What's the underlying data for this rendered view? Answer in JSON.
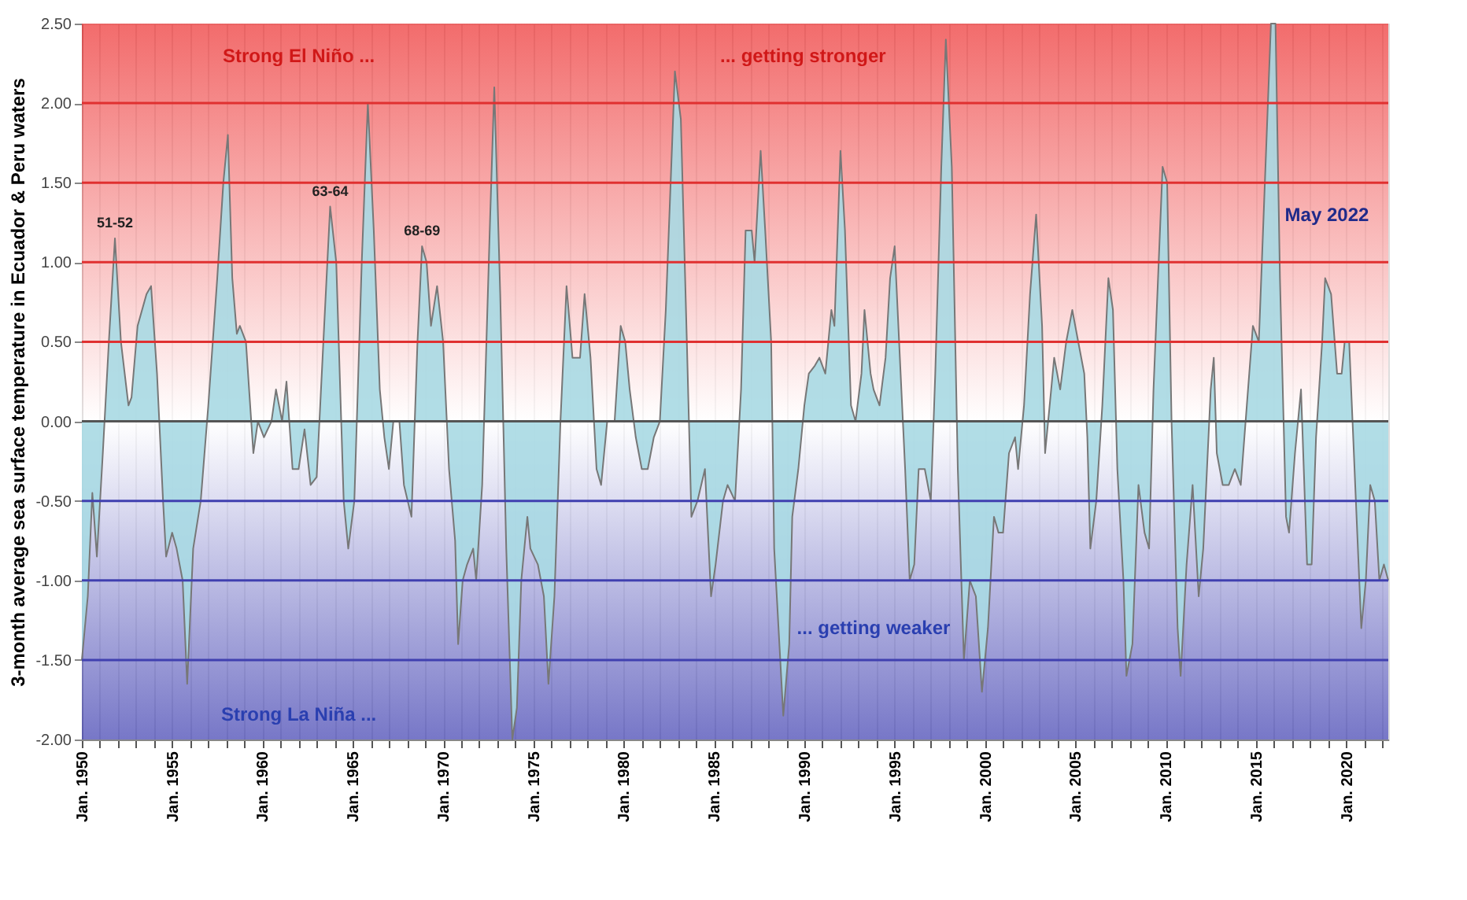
{
  "chart_data": {
    "type": "area",
    "ylabel": "3-month average sea surface temperature in Ecuador & Peru waters",
    "x": [
      "1950-01",
      "1950-05",
      "1950-08",
      "1950-11",
      "1951-03",
      "1951-07",
      "1951-11",
      "1952-03",
      "1952-08",
      "1952-10",
      "1953-02",
      "1953-08",
      "1953-11",
      "1954-03",
      "1954-07",
      "1954-09",
      "1955-01",
      "1955-04",
      "1955-08",
      "1955-11",
      "1956-03",
      "1956-08",
      "1957-01",
      "1957-07",
      "1957-11",
      "1958-02",
      "1958-05",
      "1958-08",
      "1958-10",
      "1959-02",
      "1959-07",
      "1959-10",
      "1960-02",
      "1960-07",
      "1960-10",
      "1961-02",
      "1961-05",
      "1961-09",
      "1962-01",
      "1962-05",
      "1962-09",
      "1963-01",
      "1963-05",
      "1963-10",
      "1964-02",
      "1964-07",
      "1964-10",
      "1965-02",
      "1965-07",
      "1965-11",
      "1966-03",
      "1966-07",
      "1966-10",
      "1967-01",
      "1967-04",
      "1967-08",
      "1967-11",
      "1968-04",
      "1968-08",
      "1968-11",
      "1969-02",
      "1969-05",
      "1969-09",
      "1970-01",
      "1970-05",
      "1970-09",
      "1970-11",
      "1971-02",
      "1971-05",
      "1971-09",
      "1971-11",
      "1972-03",
      "1972-08",
      "1972-11",
      "1973-03",
      "1973-07",
      "1973-11",
      "1974-02",
      "1974-05",
      "1974-09",
      "1974-11",
      "1975-04",
      "1975-08",
      "1975-11",
      "1976-03",
      "1976-07",
      "1976-11",
      "1977-03",
      "1977-08",
      "1977-11",
      "1978-03",
      "1978-07",
      "1978-10",
      "1979-02",
      "1979-07",
      "1979-11",
      "1980-02",
      "1980-05",
      "1980-09",
      "1981-01",
      "1981-05",
      "1981-09",
      "1982-01",
      "1982-05",
      "1982-11",
      "1983-03",
      "1983-07",
      "1983-10",
      "1984-02",
      "1984-07",
      "1984-11",
      "1985-02",
      "1985-07",
      "1985-10",
      "1986-03",
      "1986-07",
      "1986-10",
      "1987-02",
      "1987-04",
      "1987-08",
      "1987-11",
      "1988-03",
      "1988-05",
      "1988-11",
      "1989-03",
      "1989-05",
      "1989-09",
      "1990-01",
      "1990-04",
      "1990-08",
      "1990-11",
      "1991-03",
      "1991-07",
      "1991-09",
      "1992-01",
      "1992-04",
      "1992-08",
      "1992-11",
      "1993-03",
      "1993-05",
      "1993-09",
      "1993-11",
      "1994-03",
      "1994-07",
      "1994-10",
      "1995-01",
      "1995-04",
      "1995-08",
      "1995-11",
      "1996-02",
      "1996-05",
      "1996-09",
      "1997-01",
      "1997-04",
      "1997-08",
      "1997-11",
      "1998-03",
      "1998-07",
      "1998-11",
      "1999-03",
      "1999-07",
      "1999-11",
      "2000-03",
      "2000-07",
      "2000-10",
      "2001-01",
      "2001-05",
      "2001-09",
      "2001-11",
      "2002-03",
      "2002-07",
      "2002-11",
      "2003-03",
      "2003-05",
      "2003-09",
      "2003-11",
      "2004-03",
      "2004-07",
      "2004-11",
      "2005-03",
      "2005-07",
      "2005-09",
      "2005-11",
      "2006-03",
      "2006-07",
      "2006-11",
      "2007-02",
      "2007-05",
      "2007-09",
      "2007-11",
      "2008-03",
      "2008-07",
      "2008-11",
      "2009-02",
      "2009-05",
      "2009-11",
      "2010-02",
      "2010-05",
      "2010-09",
      "2010-11",
      "2011-03",
      "2011-07",
      "2011-11",
      "2012-02",
      "2012-07",
      "2012-09",
      "2012-11",
      "2013-03",
      "2013-07",
      "2013-11",
      "2014-03",
      "2014-07",
      "2014-11",
      "2015-03",
      "2015-07",
      "2015-11",
      "2016-02",
      "2016-05",
      "2016-09",
      "2016-11",
      "2017-03",
      "2017-07",
      "2017-11",
      "2018-02",
      "2018-05",
      "2018-09",
      "2018-11",
      "2019-03",
      "2019-07",
      "2019-10",
      "2019-12",
      "2020-03",
      "2020-07",
      "2020-11",
      "2021-02",
      "2021-05",
      "2021-08",
      "2021-11",
      "2022-02",
      "2022-05"
    ],
    "series": [
      {
        "color": "#a9d9e3",
        "values": [
          -1.5,
          -1.1,
          -0.45,
          -0.85,
          -0.2,
          0.5,
          1.15,
          0.5,
          0.1,
          0.15,
          0.6,
          0.8,
          0.85,
          0.3,
          -0.5,
          -0.85,
          -0.7,
          -0.8,
          -1.0,
          -1.65,
          -0.8,
          -0.5,
          0.1,
          0.9,
          1.5,
          1.8,
          0.9,
          0.55,
          0.6,
          0.5,
          -0.2,
          0.0,
          -0.1,
          0.0,
          0.2,
          0.0,
          0.25,
          -0.3,
          -0.3,
          -0.05,
          -0.4,
          -0.35,
          0.4,
          1.35,
          1.0,
          -0.5,
          -0.8,
          -0.5,
          1.0,
          2.0,
          1.2,
          0.2,
          -0.1,
          -0.3,
          0.0,
          0.0,
          -0.4,
          -0.6,
          0.5,
          1.1,
          1.0,
          0.6,
          0.85,
          0.5,
          -0.3,
          -0.75,
          -1.4,
          -1.0,
          -0.9,
          -0.8,
          -1.0,
          -0.4,
          1.2,
          2.1,
          0.8,
          -0.8,
          -2.0,
          -1.8,
          -1.0,
          -0.6,
          -0.8,
          -0.9,
          -1.1,
          -1.65,
          -1.1,
          0.0,
          0.85,
          0.4,
          0.4,
          0.8,
          0.4,
          -0.3,
          -0.4,
          0.0,
          0.0,
          0.6,
          0.5,
          0.2,
          -0.1,
          -0.3,
          -0.3,
          -0.1,
          0.0,
          0.7,
          2.2,
          1.9,
          0.5,
          -0.6,
          -0.5,
          -0.3,
          -1.1,
          -0.9,
          -0.5,
          -0.4,
          -0.5,
          0.2,
          1.2,
          1.2,
          1.0,
          1.7,
          1.2,
          0.5,
          -0.8,
          -1.85,
          -1.4,
          -0.6,
          -0.3,
          0.1,
          0.3,
          0.35,
          0.4,
          0.3,
          0.7,
          0.6,
          1.7,
          1.2,
          0.1,
          0.0,
          0.3,
          0.7,
          0.3,
          0.2,
          0.1,
          0.4,
          0.9,
          1.1,
          0.5,
          -0.3,
          -1.0,
          -0.9,
          -0.3,
          -0.3,
          -0.5,
          0.3,
          1.6,
          2.4,
          1.6,
          -0.3,
          -1.5,
          -1.0,
          -1.1,
          -1.7,
          -1.3,
          -0.6,
          -0.7,
          -0.7,
          -0.2,
          -0.1,
          -0.3,
          0.1,
          0.8,
          1.3,
          0.6,
          -0.2,
          0.2,
          0.4,
          0.2,
          0.5,
          0.7,
          0.5,
          0.3,
          -0.1,
          -0.8,
          -0.5,
          0.1,
          0.9,
          0.7,
          -0.3,
          -1.0,
          -1.6,
          -1.4,
          -0.4,
          -0.7,
          -0.8,
          0.2,
          1.6,
          1.5,
          0.0,
          -1.3,
          -1.6,
          -0.9,
          -0.4,
          -1.1,
          -0.8,
          0.2,
          0.4,
          -0.2,
          -0.4,
          -0.4,
          -0.3,
          -0.4,
          0.1,
          0.6,
          0.5,
          1.5,
          2.5,
          2.5,
          0.9,
          -0.6,
          -0.7,
          -0.2,
          0.2,
          -0.9,
          -0.9,
          -0.1,
          0.5,
          0.9,
          0.8,
          0.3,
          0.3,
          0.5,
          0.5,
          -0.4,
          -1.3,
          -1.0,
          -0.4,
          -0.5,
          -1.0,
          -0.9,
          -1.0
        ]
      }
    ],
    "xlim": [
      "1950-01",
      "2022-05"
    ],
    "ylim": [
      -2.0,
      2.5
    ],
    "yticks": [
      {
        "value": -2.0,
        "label": "-2.00"
      },
      {
        "value": -1.5,
        "label": "-1.50"
      },
      {
        "value": -1.0,
        "label": "-1.00"
      },
      {
        "value": -0.5,
        "label": "-0.50"
      },
      {
        "value": 0.0,
        "label": "0.00"
      },
      {
        "value": 0.5,
        "label": "0.50"
      },
      {
        "value": 1.0,
        "label": "1.00"
      },
      {
        "value": 1.5,
        "label": "1.50"
      },
      {
        "value": 2.0,
        "label": "2.00"
      },
      {
        "value": 2.5,
        "label": "2.50"
      }
    ],
    "xticks": [
      {
        "value": "1950-01",
        "label": "Jan. 1950"
      },
      {
        "value": "1951-01",
        "label": null
      },
      {
        "value": "1952-01",
        "label": null
      },
      {
        "value": "1953-01",
        "label": null
      },
      {
        "value": "1954-01",
        "label": null
      },
      {
        "value": "1955-01",
        "label": "Jan. 1955"
      },
      {
        "value": "1956-01",
        "label": null
      },
      {
        "value": "1957-01",
        "label": null
      },
      {
        "value": "1958-01",
        "label": null
      },
      {
        "value": "1959-01",
        "label": null
      },
      {
        "value": "1960-01",
        "label": "Jan. 1960"
      },
      {
        "value": "1961-01",
        "label": null
      },
      {
        "value": "1962-01",
        "label": null
      },
      {
        "value": "1963-01",
        "label": null
      },
      {
        "value": "1964-01",
        "label": null
      },
      {
        "value": "1965-01",
        "label": "Jan. 1965"
      },
      {
        "value": "1966-01",
        "label": null
      },
      {
        "value": "1967-01",
        "label": null
      },
      {
        "value": "1968-01",
        "label": null
      },
      {
        "value": "1969-01",
        "label": null
      },
      {
        "value": "1970-01",
        "label": "Jan. 1970"
      },
      {
        "value": "1971-01",
        "label": null
      },
      {
        "value": "1972-01",
        "label": null
      },
      {
        "value": "1973-01",
        "label": null
      },
      {
        "value": "1974-01",
        "label": null
      },
      {
        "value": "1975-01",
        "label": "Jan. 1975"
      },
      {
        "value": "1976-01",
        "label": null
      },
      {
        "value": "1977-01",
        "label": null
      },
      {
        "value": "1978-01",
        "label": null
      },
      {
        "value": "1979-01",
        "label": null
      },
      {
        "value": "1980-01",
        "label": "Jan. 1980"
      },
      {
        "value": "1981-01",
        "label": null
      },
      {
        "value": "1982-01",
        "label": null
      },
      {
        "value": "1983-01",
        "label": null
      },
      {
        "value": "1984-01",
        "label": null
      },
      {
        "value": "1985-01",
        "label": "Jan. 1985"
      },
      {
        "value": "1986-01",
        "label": null
      },
      {
        "value": "1987-01",
        "label": null
      },
      {
        "value": "1988-01",
        "label": null
      },
      {
        "value": "1989-01",
        "label": null
      },
      {
        "value": "1990-01",
        "label": "Jan. 1990"
      },
      {
        "value": "1991-01",
        "label": null
      },
      {
        "value": "1992-01",
        "label": null
      },
      {
        "value": "1993-01",
        "label": null
      },
      {
        "value": "1994-01",
        "label": null
      },
      {
        "value": "1995-01",
        "label": "Jan. 1995"
      },
      {
        "value": "1996-01",
        "label": null
      },
      {
        "value": "1997-01",
        "label": null
      },
      {
        "value": "1998-01",
        "label": null
      },
      {
        "value": "1999-01",
        "label": null
      },
      {
        "value": "2000-01",
        "label": "Jan. 2000"
      },
      {
        "value": "2001-01",
        "label": null
      },
      {
        "value": "2002-01",
        "label": null
      },
      {
        "value": "2003-01",
        "label": null
      },
      {
        "value": "2004-01",
        "label": null
      },
      {
        "value": "2005-01",
        "label": "Jan. 2005"
      },
      {
        "value": "2006-01",
        "label": null
      },
      {
        "value": "2007-01",
        "label": null
      },
      {
        "value": "2008-01",
        "label": null
      },
      {
        "value": "2009-01",
        "label": null
      },
      {
        "value": "2010-01",
        "label": "Jan. 2010"
      },
      {
        "value": "2011-01",
        "label": null
      },
      {
        "value": "2012-01",
        "label": null
      },
      {
        "value": "2013-01",
        "label": null
      },
      {
        "value": "2014-01",
        "label": null
      },
      {
        "value": "2015-01",
        "label": "Jan. 2015"
      },
      {
        "value": "2016-01",
        "label": null
      },
      {
        "value": "2017-01",
        "label": null
      },
      {
        "value": "2018-01",
        "label": null
      },
      {
        "value": "2019-01",
        "label": null
      },
      {
        "value": "2020-01",
        "label": "Jan. 2020"
      },
      {
        "value": "2021-01",
        "label": null
      },
      {
        "value": "2022-01",
        "label": null
      }
    ],
    "grid": "x",
    "bands": [
      {
        "axis": "y",
        "from": 0.0,
        "to": 2.5,
        "color": "#ee3b3b"
      },
      {
        "axis": "y",
        "from": -2.0,
        "to": 0.0,
        "color": "#4a4ab5"
      }
    ],
    "ref_lines": [
      {
        "axis": "y",
        "value": 2.0,
        "color": "#e03030"
      },
      {
        "axis": "y",
        "value": 1.5,
        "color": "#e03030"
      },
      {
        "axis": "y",
        "value": 1.0,
        "color": "#e03030"
      },
      {
        "axis": "y",
        "value": 0.5,
        "color": "#e03030"
      },
      {
        "axis": "y",
        "value": 0.0,
        "color": "#555555"
      },
      {
        "axis": "y",
        "value": -0.5,
        "color": "#4040b0"
      },
      {
        "axis": "y",
        "value": -1.0,
        "color": "#4040b0"
      },
      {
        "axis": "y",
        "value": -1.5,
        "color": "#4040b0"
      }
    ],
    "annotations": [
      "Strong El Niño ...",
      "... getting stronger",
      "Strong La Niña ...",
      "... getting weaker",
      "May 2022",
      {
        "text": "51-52",
        "x": "1951-11",
        "y": 1.15
      },
      {
        "text": "63-64",
        "x": "1963-10",
        "y": 1.35
      },
      {
        "text": "68-69",
        "x": "1968-11",
        "y": 1.1
      }
    ]
  }
}
